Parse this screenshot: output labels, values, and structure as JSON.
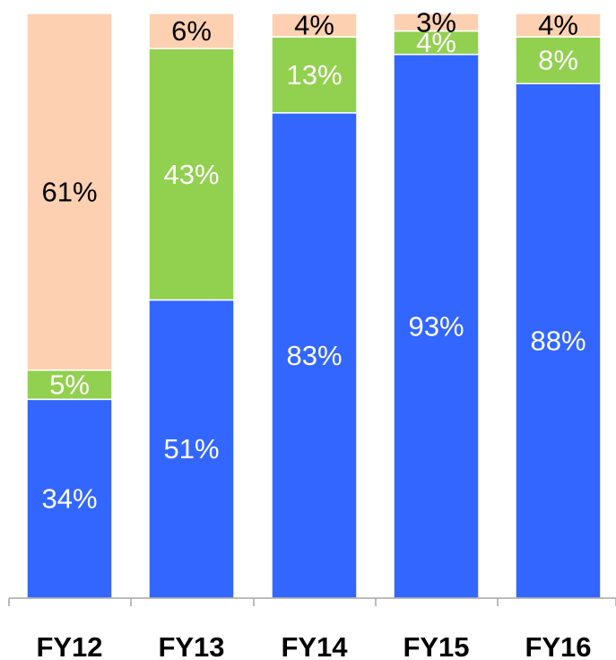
{
  "chart_data": {
    "type": "bar",
    "stacked": true,
    "orientation": "vertical",
    "categories": [
      "FY12",
      "FY13",
      "FY14",
      "FY15",
      "FY16"
    ],
    "series": [
      {
        "values": [
          34,
          51,
          83,
          93,
          88
        ],
        "labels": [
          "34%",
          "51%",
          "83%",
          "93%",
          "88%"
        ],
        "color": "#3366ff",
        "label_color": "#ffffff"
      },
      {
        "values": [
          5,
          43,
          13,
          4,
          8
        ],
        "labels": [
          "5%",
          "43%",
          "13%",
          "4%",
          "8%"
        ],
        "color": "#92d050",
        "label_color": "#ffffff"
      },
      {
        "values": [
          61,
          6,
          4,
          3,
          4
        ],
        "labels": [
          "61%",
          "6%",
          "4%",
          "3%",
          "4%"
        ],
        "color": "#fdd0b1",
        "label_color": "#000000"
      }
    ],
    "ylim": [
      0,
      100
    ],
    "grid": false,
    "legend": "none",
    "title": "",
    "xlabel": "",
    "ylabel": ""
  }
}
